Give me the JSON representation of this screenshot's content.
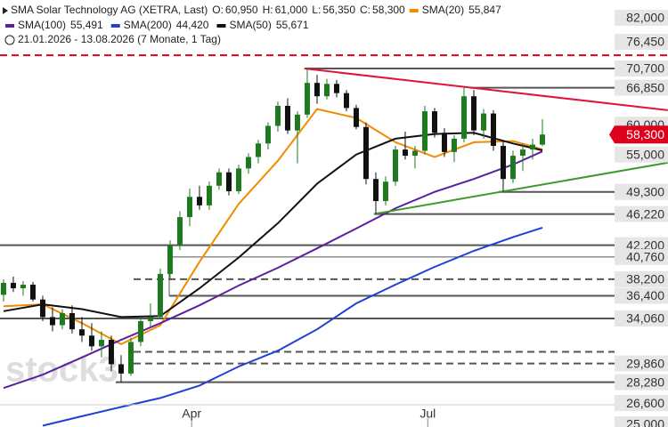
{
  "chart_data": {
    "type": "candlestick",
    "log": true,
    "title": "SMA Solar Technology AG (XETRA, Last)",
    "ohlc": [
      {
        "label": "O:",
        "value": 60950,
        "value_label": "60,950"
      },
      {
        "label": "H:",
        "value": 61000,
        "value_label": "61,000"
      },
      {
        "label": "L:",
        "value": 56350,
        "value_label": "56,350"
      },
      {
        "label": "C:",
        "value": 58300,
        "value_label": "58,300"
      }
    ],
    "period": "21.01.2026 - 13.08.2026 (7 Monate, 1 Tag)",
    "watermark": "stock3",
    "xlim": [
      -0.36,
      67.82
    ],
    "ylim": [
      25000,
      82000
    ],
    "xticks": [
      {
        "value": 19.2,
        "label": "Apr"
      },
      {
        "value": 43.3,
        "label": "Jul"
      }
    ],
    "yticks": [
      {
        "value": 82000,
        "label": "82,000"
      },
      {
        "value": 76450,
        "label": "76,450"
      },
      {
        "value": 70700,
        "label": "70,700"
      },
      {
        "value": 66850,
        "label": "66,850"
      },
      {
        "value": 60000,
        "label": "60,000"
      },
      {
        "value": 55000,
        "label": "55,000"
      },
      {
        "value": 49300,
        "label": "49,300"
      },
      {
        "value": 46220,
        "label": "46,220"
      },
      {
        "value": 42200,
        "label": "42,200"
      },
      {
        "value": 40760,
        "label": "40,760"
      },
      {
        "value": 38200,
        "label": "38,200"
      },
      {
        "value": 36400,
        "label": "36,400"
      },
      {
        "value": 34060,
        "label": "34,060"
      },
      {
        "value": 29860,
        "label": "29,860"
      },
      {
        "value": 28280,
        "label": "28,280"
      },
      {
        "value": 26600,
        "label": "26,600"
      },
      {
        "value": 25000,
        "label": "25,000"
      }
    ],
    "last": {
      "value": 58300,
      "label": "58,300",
      "color": "#e0001b"
    },
    "up_color": "#1f7a1f",
    "down_color": "#111111",
    "open": [
      36500,
      37800,
      37200,
      37600,
      36000,
      34200,
      33400,
      34600,
      33000,
      32400,
      31400,
      32000,
      29800,
      29000,
      31800,
      33800,
      34200,
      38800,
      42200,
      45800,
      48600,
      47400,
      50200,
      52200,
      49400,
      52800,
      54600,
      56800,
      59800,
      63400,
      59000,
      61800,
      67800,
      65200,
      67600,
      65800,
      63000,
      59600,
      51200,
      48000,
      50800,
      55800,
      54800,
      55600,
      62400,
      58600,
      55400,
      57600,
      65200,
      59000,
      62000,
      56400,
      51200,
      54800,
      55800,
      56600
    ],
    "high": [
      38200,
      38500,
      38000,
      37900,
      36400,
      35200,
      35000,
      35400,
      34200,
      33600,
      32800,
      32400,
      30600,
      32200,
      34200,
      35600,
      39400,
      42800,
      46600,
      49800,
      50200,
      50800,
      52800,
      52800,
      53400,
      55200,
      57400,
      60400,
      64200,
      64800,
      62400,
      70700,
      69400,
      68600,
      68400,
      66400,
      63600,
      60400,
      52200,
      51600,
      56400,
      58800,
      56400,
      63400,
      63000,
      59400,
      58200,
      66850,
      66400,
      62800,
      62600,
      57200,
      55600,
      56800,
      57600,
      61000
    ],
    "low": [
      35800,
      36800,
      36400,
      35800,
      33800,
      32800,
      33000,
      32600,
      31800,
      31000,
      30400,
      29200,
      28280,
      28800,
      31400,
      33200,
      34000,
      38200,
      41600,
      44600,
      46800,
      46800,
      49600,
      48800,
      49000,
      52000,
      53600,
      55800,
      58800,
      58400,
      53600,
      61200,
      63800,
      64600,
      65000,
      62400,
      59200,
      50400,
      46220,
      47400,
      50200,
      54200,
      52800,
      55000,
      57800,
      54600,
      53800,
      57000,
      58200,
      57600,
      55600,
      49300,
      50600,
      52400,
      54200,
      56350
    ],
    "close": [
      37800,
      37200,
      37600,
      36000,
      34200,
      33400,
      34600,
      33000,
      32400,
      31400,
      32000,
      29800,
      29000,
      31800,
      33800,
      34200,
      38800,
      42200,
      45800,
      48600,
      47400,
      50200,
      52200,
      49400,
      52800,
      54600,
      56800,
      59800,
      63400,
      59000,
      61800,
      67800,
      65200,
      67600,
      65800,
      63000,
      59600,
      51200,
      48000,
      50800,
      55800,
      54800,
      55600,
      62400,
      58600,
      55400,
      57600,
      65200,
      59000,
      62000,
      56400,
      51200,
      54800,
      55800,
      56600,
      58300
    ],
    "series": [
      {
        "name": "SMA(20)",
        "color": "#f08c00",
        "legend_value": "55,847",
        "x": [
          0,
          4,
          8,
          12,
          16,
          20,
          24,
          28,
          32,
          36,
          40,
          44,
          48,
          52,
          55
        ],
        "values": [
          35300,
          35500,
          33600,
          31600,
          33400,
          40200,
          47600,
          54000,
          62800,
          61200,
          57000,
          54600,
          57000,
          57200,
          55847
        ]
      },
      {
        "name": "SMA(100)",
        "color": "#5b1fa0",
        "legend_value": "55,491",
        "x": [
          0,
          4,
          8,
          12,
          16,
          20,
          24,
          28,
          32,
          36,
          40,
          44,
          48,
          52,
          55
        ],
        "values": [
          27800,
          28900,
          30400,
          32000,
          33600,
          35400,
          37500,
          39500,
          41800,
          44300,
          47000,
          49300,
          51200,
          53400,
          55491
        ]
      },
      {
        "name": "SMA(200)",
        "color": "#1f3fd6",
        "legend_value": "44,420",
        "x": [
          0,
          4,
          8,
          12,
          16,
          20,
          24,
          28,
          32,
          36,
          40,
          44,
          48,
          52,
          55
        ],
        "values": [
          null,
          24900,
          25600,
          26300,
          27000,
          28000,
          29600,
          31000,
          33000,
          35600,
          37600,
          39600,
          41500,
          43200,
          44420
        ]
      },
      {
        "name": "SMA(50)",
        "color": "#111111",
        "legend_value": "55,671",
        "x": [
          0,
          4,
          8,
          12,
          16,
          20,
          24,
          28,
          32,
          36,
          40,
          44,
          48,
          52,
          55
        ],
        "values": [
          34800,
          35500,
          35000,
          34200,
          34300,
          37200,
          40700,
          45000,
          50500,
          55000,
          57600,
          58400,
          58600,
          56800,
          55671
        ]
      }
    ],
    "levels": [
      {
        "value": 73500,
        "style": "dashed",
        "color": "#e0001b"
      },
      {
        "value": 70700,
        "style": "solid",
        "color": "#555555"
      },
      {
        "value": 66850,
        "style": "solid",
        "color": "#555555"
      },
      {
        "value": 49300,
        "style": "solid",
        "color": "#555555"
      },
      {
        "value": 46220,
        "style": "solid",
        "color": "#555555"
      },
      {
        "value": 42200,
        "style": "solid",
        "color": "#555555"
      },
      {
        "value": 40760,
        "style": "thin",
        "color": "#555555"
      },
      {
        "value": 38200,
        "style": "dashed",
        "color": "#555555"
      },
      {
        "value": 36400,
        "style": "solid",
        "color": "#555555"
      },
      {
        "value": 34060,
        "style": "solid",
        "color": "#555555"
      },
      {
        "value": 30900,
        "style": "dashed",
        "color": "#555555"
      },
      {
        "value": 29860,
        "style": "dashed",
        "color": "#555555"
      },
      {
        "value": 28280,
        "style": "solid",
        "color": "#555555"
      }
    ],
    "trendlines": [
      {
        "color": "#e0143c",
        "x": [
          30.7,
          67.8
        ],
        "values": [
          70700,
          62600
        ]
      },
      {
        "color": "#3a9a2a",
        "x": [
          37.8,
          67.8
        ],
        "values": [
          46220,
          53700
        ]
      }
    ]
  }
}
